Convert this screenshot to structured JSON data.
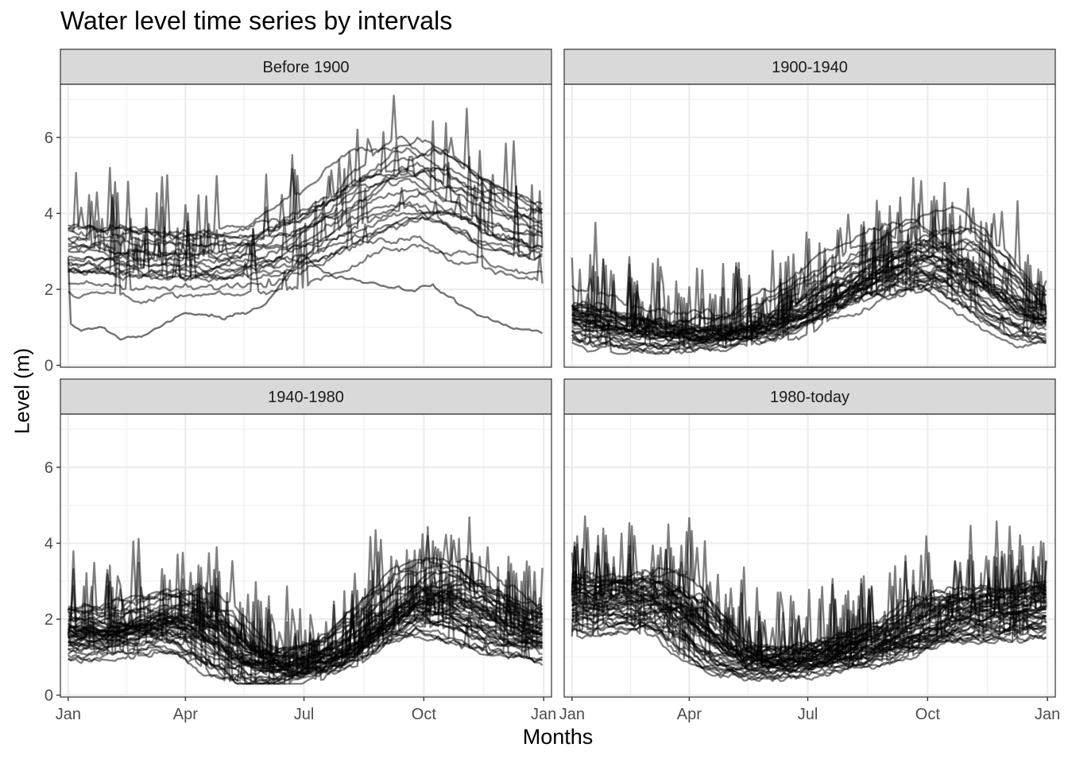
{
  "chart_data": {
    "type": "line",
    "title": "Water level time series by intervals",
    "xlabel": "Months",
    "ylabel": "Level (m)",
    "x_ticks": [
      "Jan",
      "Apr",
      "Jul",
      "Oct",
      "Jan"
    ],
    "x_tick_days": [
      0,
      90,
      181,
      273,
      365
    ],
    "y_ticks": [
      0,
      2,
      4,
      6
    ],
    "ylim": [
      -0.05,
      7.4
    ],
    "xlim": [
      -6,
      371
    ],
    "grid": true,
    "legend": "none",
    "line_color": "#000000",
    "panels": [
      {
        "label": "Before 1900",
        "series_count": 20,
        "base_profile": [
          [
            0,
            2.85
          ],
          [
            30,
            2.85
          ],
          [
            75,
            2.7
          ],
          [
            120,
            2.7
          ],
          [
            160,
            3.0
          ],
          [
            200,
            3.6
          ],
          [
            240,
            4.4
          ],
          [
            275,
            4.6
          ],
          [
            300,
            4.1
          ],
          [
            330,
            3.6
          ],
          [
            365,
            3.2
          ]
        ],
        "highlight_series": [
          [
            0,
            2.8
          ],
          [
            1,
            1.1
          ],
          [
            10,
            0.9
          ],
          [
            25,
            1.0
          ],
          [
            40,
            0.7
          ],
          [
            60,
            0.8
          ],
          [
            90,
            1.4
          ],
          [
            120,
            1.2
          ],
          [
            150,
            1.6
          ],
          [
            180,
            2.9
          ],
          [
            200,
            2.4
          ],
          [
            230,
            2.2
          ],
          [
            260,
            2.0
          ],
          [
            280,
            2.1
          ],
          [
            300,
            1.6
          ],
          [
            330,
            1.1
          ],
          [
            365,
            0.85
          ]
        ]
      },
      {
        "label": "1900-1940",
        "series_count": 36,
        "base_profile": [
          [
            0,
            1.3
          ],
          [
            30,
            1.0
          ],
          [
            60,
            0.85
          ],
          [
            100,
            0.8
          ],
          [
            140,
            0.95
          ],
          [
            180,
            1.5
          ],
          [
            220,
            2.3
          ],
          [
            260,
            2.8
          ],
          [
            285,
            2.9
          ],
          [
            310,
            2.3
          ],
          [
            340,
            1.5
          ],
          [
            365,
            1.1
          ]
        ]
      },
      {
        "label": "1940-1980",
        "series_count": 44,
        "base_profile": [
          [
            0,
            1.65
          ],
          [
            25,
            1.6
          ],
          [
            50,
            1.8
          ],
          [
            80,
            2.0
          ],
          [
            105,
            1.7
          ],
          [
            125,
            1.1
          ],
          [
            140,
            0.8
          ],
          [
            170,
            0.7
          ],
          [
            195,
            0.9
          ],
          [
            225,
            1.6
          ],
          [
            255,
            2.4
          ],
          [
            280,
            2.6
          ],
          [
            305,
            2.3
          ],
          [
            335,
            1.8
          ],
          [
            365,
            1.6
          ]
        ]
      },
      {
        "label": "1980-today",
        "series_count": 44,
        "base_profile": [
          [
            0,
            2.3
          ],
          [
            30,
            2.3
          ],
          [
            60,
            2.4
          ],
          [
            80,
            2.2
          ],
          [
            100,
            1.5
          ],
          [
            125,
            0.85
          ],
          [
            160,
            0.8
          ],
          [
            190,
            0.95
          ],
          [
            220,
            1.2
          ],
          [
            260,
            1.5
          ],
          [
            285,
            2.0
          ],
          [
            310,
            2.0
          ],
          [
            340,
            2.1
          ],
          [
            365,
            2.2
          ]
        ]
      }
    ]
  }
}
